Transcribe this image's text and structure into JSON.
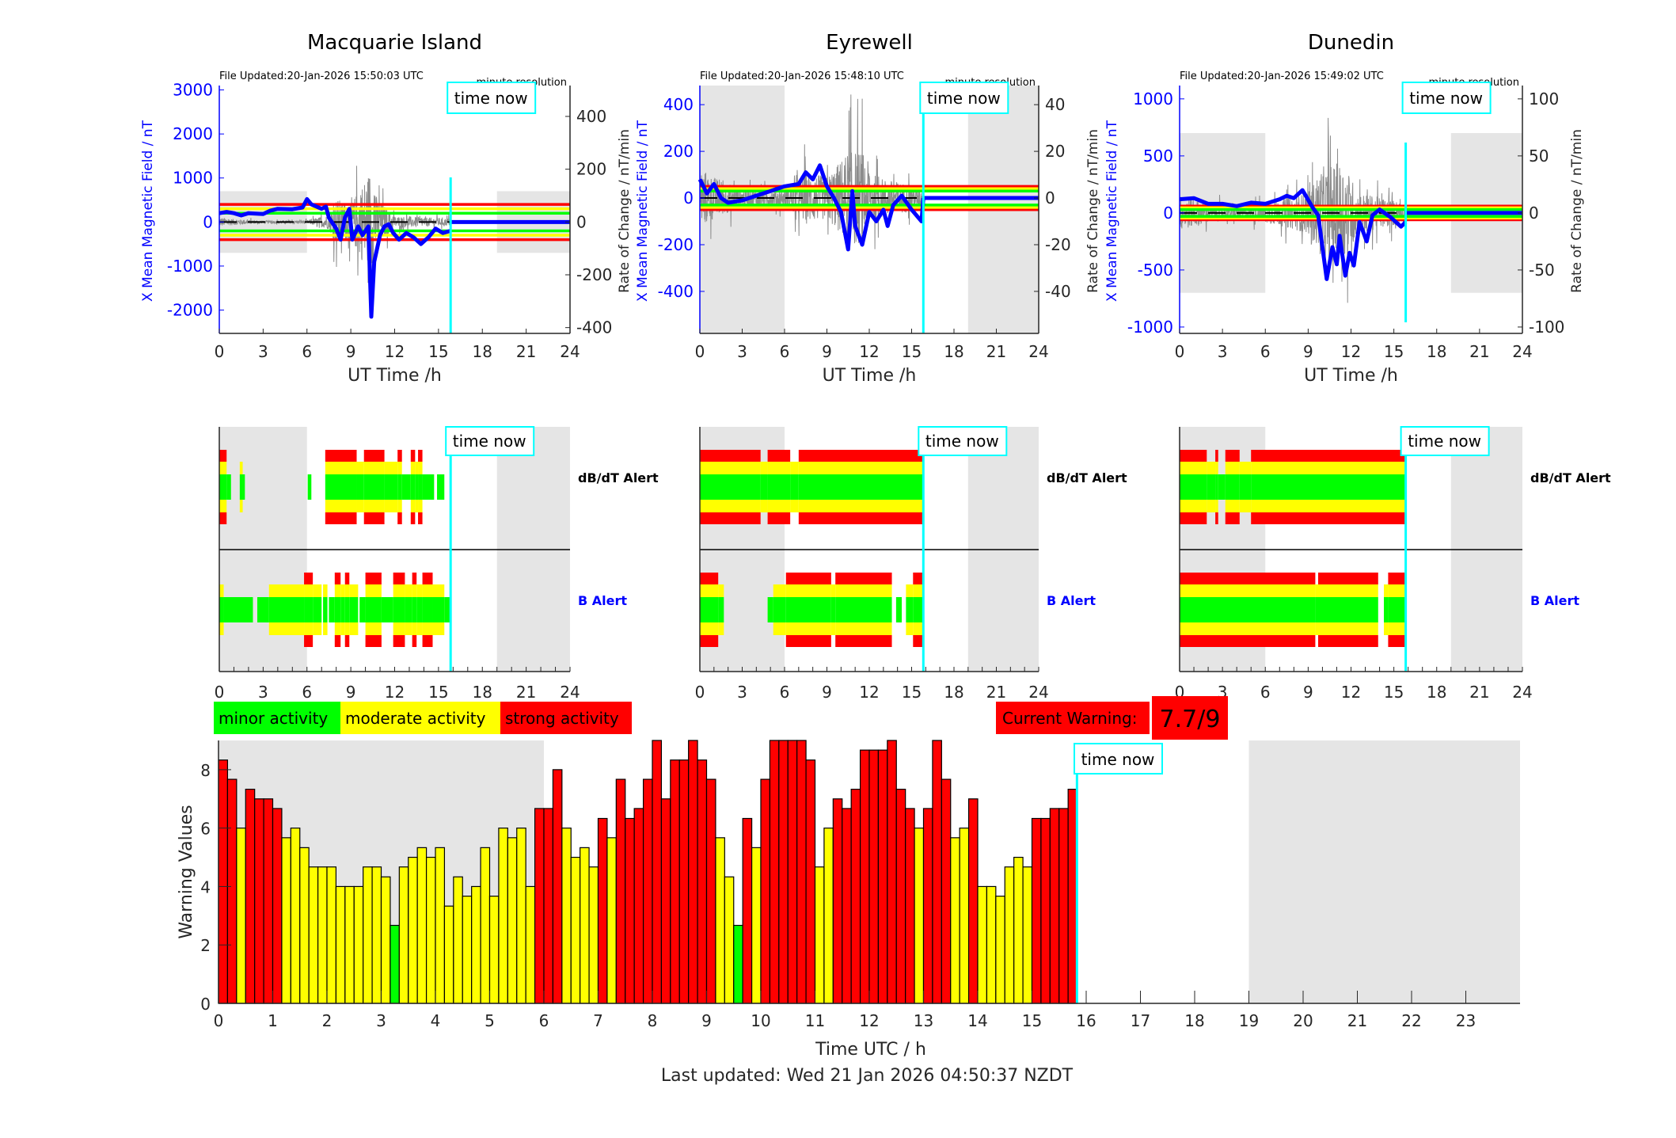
{
  "colors": {
    "minor": "#00ff00",
    "moderate": "#ffff00",
    "strong": "#ff0000",
    "night_shading": "#e5e5e5",
    "time_now": "#00ffff",
    "mean_field": "#0000ff",
    "rate_of_change": "#8c8c8c"
  },
  "x_axis": {
    "label": "UT Time /h",
    "range": [
      0,
      24
    ],
    "ticks": [
      0,
      3,
      6,
      9,
      12,
      15,
      18,
      21,
      24
    ]
  },
  "night_shading_h": [
    [
      0,
      6
    ],
    [
      19,
      24
    ]
  ],
  "time_now_h": 15.83,
  "time_now_label": "time now",
  "right_axis_label": "Rate of Change / nT/min",
  "alert_labels": {
    "dbdt": "dB/dT Alert",
    "b": "B Alert"
  },
  "stations": [
    {
      "name": "Macquarie Island",
      "file_updated": "File Updated:20-Jan-2026 15:50:03 UTC",
      "resolution": "minute resolution",
      "left_axis": {
        "label": "X Mean Magnetic Field / nT",
        "range": [
          -2530,
          3100
        ],
        "ticks": [
          -2000,
          -1000,
          0,
          1000,
          2000,
          3000
        ]
      },
      "right_axis": {
        "range": [
          -422,
          517
        ],
        "ticks": [
          -400,
          -200,
          0,
          200,
          400
        ]
      },
      "thresholds_nT": {
        "minor": 200,
        "moderate": 300,
        "strong": 400
      },
      "night_shading_nT": 700,
      "mean_field": [
        [
          0,
          200
        ],
        [
          0.5,
          230
        ],
        [
          1,
          200
        ],
        [
          1.5,
          150
        ],
        [
          2,
          200
        ],
        [
          3,
          180
        ],
        [
          3.5,
          260
        ],
        [
          4,
          300
        ],
        [
          5,
          290
        ],
        [
          5.7,
          330
        ],
        [
          6,
          520
        ],
        [
          6.3,
          400
        ],
        [
          7,
          300
        ],
        [
          7.3,
          350
        ],
        [
          7.5,
          100
        ],
        [
          8,
          -150
        ],
        [
          8.3,
          -400
        ],
        [
          8.6,
          100
        ],
        [
          8.9,
          300
        ],
        [
          9.1,
          -400
        ],
        [
          9.5,
          -100
        ],
        [
          9.8,
          -300
        ],
        [
          10,
          -200
        ],
        [
          10.2,
          -100
        ],
        [
          10.4,
          -2150
        ],
        [
          10.6,
          -900
        ],
        [
          10.8,
          -600
        ],
        [
          11,
          -300
        ],
        [
          11.3,
          -100
        ],
        [
          11.6,
          -50
        ],
        [
          11.9,
          -250
        ],
        [
          12.3,
          -400
        ],
        [
          12.8,
          -250
        ],
        [
          13.3,
          -350
        ],
        [
          13.8,
          -500
        ],
        [
          14.3,
          -350
        ],
        [
          14.8,
          -150
        ],
        [
          15.3,
          -250
        ],
        [
          15.83,
          -200
        ]
      ],
      "db_dt_alert": [
        [
          0,
          0.5,
          3
        ],
        [
          0.5,
          0.8,
          1
        ],
        [
          1.4,
          1.6,
          2
        ],
        [
          1.6,
          1.75,
          1
        ],
        [
          6.05,
          6.3,
          1
        ],
        [
          7.25,
          9.4,
          3
        ],
        [
          9.4,
          9.9,
          2
        ],
        [
          9.9,
          11.3,
          3
        ],
        [
          11.3,
          12.2,
          2
        ],
        [
          12.2,
          12.5,
          3
        ],
        [
          12.5,
          13.1,
          1
        ],
        [
          13.1,
          13.4,
          3
        ],
        [
          13.4,
          13.6,
          2
        ],
        [
          13.6,
          13.9,
          3
        ],
        [
          13.9,
          14.7,
          1
        ],
        [
          14.9,
          15.4,
          1
        ]
      ],
      "b_alert": [
        [
          0,
          0.3,
          2
        ],
        [
          0.3,
          2.3,
          1
        ],
        [
          2.6,
          3.4,
          1
        ],
        [
          3.4,
          5.8,
          2
        ],
        [
          5.8,
          6.4,
          3
        ],
        [
          6.4,
          7.0,
          2
        ],
        [
          7.1,
          7.4,
          2
        ],
        [
          7.5,
          7.9,
          1
        ],
        [
          7.9,
          8.3,
          3
        ],
        [
          8.3,
          8.6,
          2
        ],
        [
          8.6,
          8.9,
          3
        ],
        [
          8.9,
          9.5,
          2
        ],
        [
          9.6,
          10.0,
          1
        ],
        [
          10.0,
          11.1,
          3
        ],
        [
          11.1,
          11.9,
          1
        ],
        [
          11.9,
          12.7,
          3
        ],
        [
          12.7,
          13.2,
          2
        ],
        [
          13.2,
          13.5,
          3
        ],
        [
          13.5,
          13.9,
          2
        ],
        [
          13.9,
          14.6,
          3
        ],
        [
          14.6,
          15.4,
          2
        ],
        [
          15.4,
          15.9,
          1
        ]
      ]
    },
    {
      "name": "Eyrewell",
      "file_updated": "File Updated:20-Jan-2026 15:48:10 UTC",
      "resolution": "minute resolution",
      "left_axis": {
        "label": "X Mean Magnetic Field / nT",
        "range": [
          -580,
          482
        ],
        "ticks": [
          -400,
          -200,
          0,
          200,
          400
        ]
      },
      "right_axis": {
        "range": [
          -58,
          48.2
        ],
        "ticks": [
          -40,
          -20,
          0,
          20,
          40
        ]
      },
      "thresholds_nT": {
        "minor": 30,
        "moderate": 40,
        "strong": 50
      },
      "night_shading_nT": null,
      "mean_field": [
        [
          0,
          80
        ],
        [
          0.5,
          20
        ],
        [
          1,
          60
        ],
        [
          1.5,
          0
        ],
        [
          2,
          -20
        ],
        [
          3,
          -10
        ],
        [
          4,
          10
        ],
        [
          5,
          30
        ],
        [
          6,
          50
        ],
        [
          7,
          60
        ],
        [
          7.5,
          110
        ],
        [
          8,
          80
        ],
        [
          8.5,
          140
        ],
        [
          9,
          50
        ],
        [
          9.5,
          0
        ],
        [
          10,
          -60
        ],
        [
          10.5,
          -220
        ],
        [
          10.8,
          30
        ],
        [
          11,
          -120
        ],
        [
          11.5,
          -200
        ],
        [
          12,
          -60
        ],
        [
          12.5,
          -100
        ],
        [
          13,
          -50
        ],
        [
          13.3,
          -120
        ],
        [
          13.7,
          -30
        ],
        [
          14.3,
          10
        ],
        [
          15,
          -50
        ],
        [
          15.7,
          -100
        ],
        [
          15.83,
          0
        ]
      ],
      "db_dt_alert": [
        [
          0,
          4.3,
          3
        ],
        [
          4.3,
          4.8,
          2
        ],
        [
          4.8,
          6.4,
          3
        ],
        [
          6.4,
          7.0,
          2
        ],
        [
          7.0,
          15.8,
          3
        ]
      ],
      "b_alert": [
        [
          0,
          1.3,
          3
        ],
        [
          1.3,
          1.7,
          2
        ],
        [
          4.8,
          5.2,
          1
        ],
        [
          5.2,
          6.1,
          2
        ],
        [
          6.1,
          9.3,
          3
        ],
        [
          9.3,
          9.6,
          2
        ],
        [
          9.6,
          13.6,
          3
        ],
        [
          13.9,
          14.3,
          1
        ],
        [
          14.6,
          15.1,
          2
        ],
        [
          15.1,
          15.8,
          3
        ]
      ]
    },
    {
      "name": "Dunedin",
      "file_updated": "File Updated:20-Jan-2026 15:49:02 UTC",
      "resolution": "minute resolution",
      "left_axis": {
        "label": "X Mean Magnetic Field / nT",
        "range": [
          -1056,
          1117
        ],
        "ticks": [
          -1000,
          -500,
          0,
          500,
          1000
        ]
      },
      "right_axis": {
        "range": [
          -105.6,
          111.7
        ],
        "ticks": [
          -100,
          -50,
          0,
          50,
          100
        ]
      },
      "thresholds_nT": {
        "minor": 30,
        "moderate": 45,
        "strong": 60
      },
      "night_shading_nT": 700,
      "mean_field": [
        [
          0,
          120
        ],
        [
          1,
          130
        ],
        [
          2,
          80
        ],
        [
          3,
          80
        ],
        [
          4,
          60
        ],
        [
          5,
          90
        ],
        [
          6,
          80
        ],
        [
          7,
          120
        ],
        [
          7.5,
          150
        ],
        [
          8,
          130
        ],
        [
          8.6,
          200
        ],
        [
          9.3,
          50
        ],
        [
          9.7,
          -20
        ],
        [
          10,
          -300
        ],
        [
          10.3,
          -580
        ],
        [
          10.7,
          -300
        ],
        [
          11,
          -450
        ],
        [
          11.2,
          -200
        ],
        [
          11.6,
          -550
        ],
        [
          11.9,
          -350
        ],
        [
          12.2,
          -460
        ],
        [
          12.6,
          -80
        ],
        [
          13.1,
          -250
        ],
        [
          13.5,
          -20
        ],
        [
          14,
          30
        ],
        [
          14.8,
          -40
        ],
        [
          15.5,
          -120
        ],
        [
          15.83,
          -80
        ]
      ],
      "db_dt_alert": [
        [
          0,
          1.9,
          3
        ],
        [
          1.9,
          2.5,
          2
        ],
        [
          2.5,
          2.7,
          3
        ],
        [
          2.7,
          3.2,
          1
        ],
        [
          3.2,
          4.2,
          3
        ],
        [
          4.2,
          5.0,
          2
        ],
        [
          5.0,
          15.8,
          3
        ]
      ],
      "b_alert": [
        [
          0,
          9.5,
          3
        ],
        [
          9.5,
          9.7,
          2
        ],
        [
          9.7,
          13.9,
          3
        ],
        [
          14.3,
          14.6,
          2
        ],
        [
          14.6,
          15.9,
          3
        ]
      ]
    }
  ],
  "legend": [
    {
      "label": "minor activity",
      "level": "minor"
    },
    {
      "label": "moderate activity",
      "level": "moderate"
    },
    {
      "label": "strong activity",
      "level": "strong"
    }
  ],
  "current_warning": {
    "label": "Current Warning:",
    "value": "7.7/9",
    "level": "strong"
  },
  "chart_data": {
    "type": "bar",
    "xlabel": "Time UTC / h",
    "ylabel": "Warning Values",
    "xlim": [
      0,
      24
    ],
    "ylim": [
      0,
      9
    ],
    "xticks": [
      0,
      1,
      2,
      3,
      4,
      5,
      6,
      7,
      8,
      9,
      10,
      11,
      12,
      13,
      14,
      15,
      16,
      17,
      18,
      19,
      20,
      21,
      22,
      23
    ],
    "yticks": [
      0,
      2,
      4,
      6,
      8
    ],
    "bin_minutes": 10,
    "color_levels": {
      "minor_below": 3,
      "strong_above": 6
    },
    "values": [
      8.33,
      7.67,
      6,
      7.33,
      7,
      7,
      6.67,
      5.67,
      6,
      5.33,
      4.67,
      4.67,
      4.67,
      4,
      4,
      4,
      4.67,
      4.67,
      4.33,
      2.67,
      4.67,
      5,
      5.33,
      5,
      5.33,
      3.33,
      4.33,
      3.67,
      4,
      5.33,
      3.67,
      6,
      5.67,
      6,
      4,
      6.67,
      6.67,
      8,
      6,
      5,
      5.33,
      4.67,
      6.33,
      5.67,
      7.67,
      6.33,
      6.67,
      7.67,
      9,
      7,
      8.33,
      8.33,
      9,
      8.33,
      7.67,
      5.67,
      4.33,
      2.67,
      6.33,
      5.33,
      7.67,
      9,
      9,
      9,
      9,
      8.33,
      4.67,
      6,
      7,
      6.67,
      7.33,
      8.67,
      8.67,
      8.67,
      9,
      7.33,
      6.67,
      6,
      6.67,
      9,
      7.67,
      5.67,
      6,
      7,
      4,
      4,
      3.67,
      4.67,
      5,
      4.67,
      6.33,
      6.33,
      6.67,
      6.67,
      7.33
    ],
    "time_now_label": "time now"
  },
  "footer": "Last updated: Wed 21 Jan 2026 04:50:37 NZDT"
}
